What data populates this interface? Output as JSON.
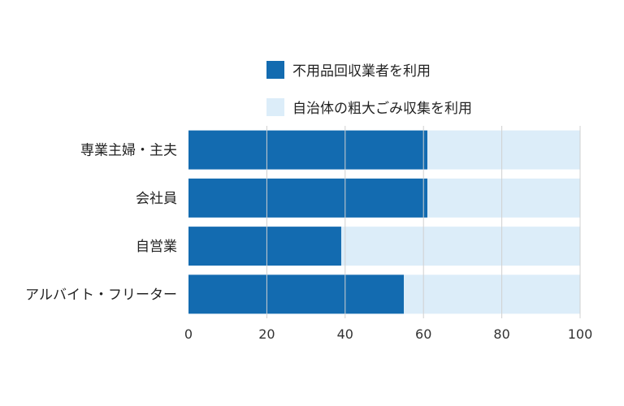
{
  "colors": {
    "series1": "#136bb0",
    "series2": "#dcedf9",
    "grid": "#d0d0d0",
    "axis_text": "#333333"
  },
  "chart_data": {
    "type": "bar",
    "orientation": "horizontal",
    "stacked": true,
    "categories": [
      "専業主婦・主夫",
      "会社員",
      "自営業",
      "アルバイト・フリーター"
    ],
    "series": [
      {
        "name": "不用品回収業者を利用",
        "values": [
          61,
          61,
          39,
          55
        ]
      },
      {
        "name": "自治体の粗大ごみ収集を利用",
        "values": [
          39,
          39,
          61,
          45
        ]
      }
    ],
    "xlim": [
      0,
      100
    ],
    "xticks": [
      0,
      20,
      40,
      60,
      80,
      100
    ],
    "xlabel": "",
    "ylabel": "",
    "grid": true,
    "legend_position": "top-right"
  }
}
